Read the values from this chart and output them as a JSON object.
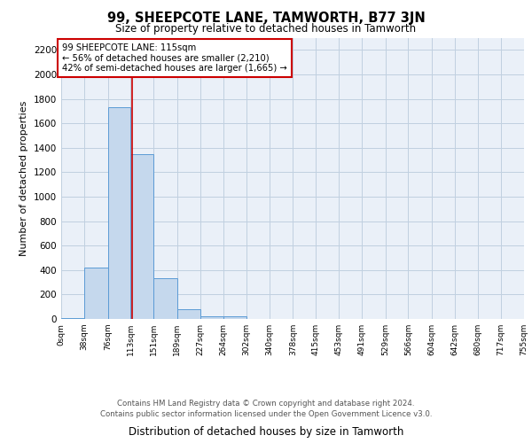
{
  "title": "99, SHEEPCOTE LANE, TAMWORTH, B77 3JN",
  "subtitle": "Size of property relative to detached houses in Tamworth",
  "xlabel": "Distribution of detached houses by size in Tamworth",
  "ylabel": "Number of detached properties",
  "footer_line1": "Contains HM Land Registry data © Crown copyright and database right 2024.",
  "footer_line2": "Contains public sector information licensed under the Open Government Licence v3.0.",
  "bar_edges": [
    0,
    38,
    76,
    113,
    151,
    189,
    227,
    264,
    302,
    340,
    378,
    415,
    453,
    491,
    529,
    566,
    604,
    642,
    680,
    717,
    755
  ],
  "bar_heights": [
    10,
    420,
    1730,
    1350,
    330,
    80,
    25,
    20,
    0,
    0,
    0,
    0,
    0,
    0,
    0,
    0,
    0,
    0,
    0,
    0
  ],
  "bar_color": "#c5d8ed",
  "bar_edgecolor": "#5b9bd5",
  "x_tick_labels": [
    "0sqm",
    "38sqm",
    "76sqm",
    "113sqm",
    "151sqm",
    "189sqm",
    "227sqm",
    "264sqm",
    "302sqm",
    "340sqm",
    "378sqm",
    "415sqm",
    "453sqm",
    "491sqm",
    "529sqm",
    "566sqm",
    "604sqm",
    "642sqm",
    "680sqm",
    "717sqm",
    "755sqm"
  ],
  "vline_x": 115,
  "vline_color": "#cc0000",
  "annotation_text": "99 SHEEPCOTE LANE: 115sqm\n← 56% of detached houses are smaller (2,210)\n42% of semi-detached houses are larger (1,665) →",
  "annotation_box_edgecolor": "#cc0000",
  "annotation_box_facecolor": "white",
  "ylim": [
    0,
    2300
  ],
  "yticks": [
    0,
    200,
    400,
    600,
    800,
    1000,
    1200,
    1400,
    1600,
    1800,
    2000,
    2200
  ],
  "grid_color": "#c0d0e0",
  "background_color": "#eaf0f8"
}
